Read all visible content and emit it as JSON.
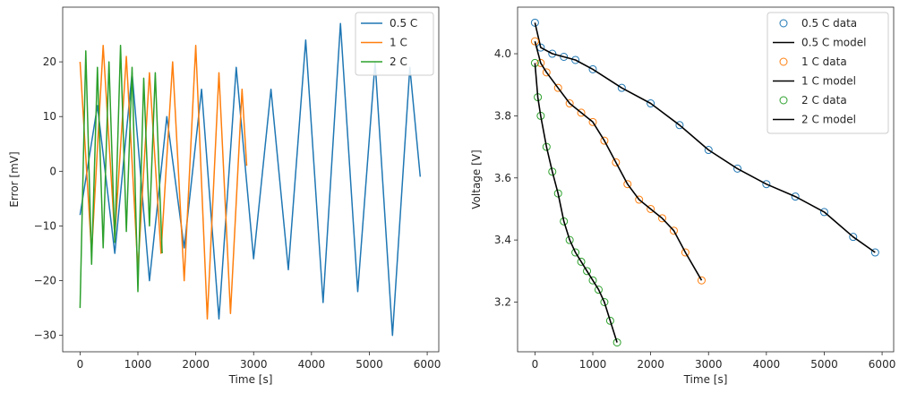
{
  "chart_data": [
    {
      "type": "line",
      "xlabel": "Time [s]",
      "ylabel": "Error [mV]",
      "xlim": [
        -300,
        6200
      ],
      "ylim": [
        -33,
        30
      ],
      "xticks": [
        0,
        1000,
        2000,
        3000,
        4000,
        5000,
        6000
      ],
      "yticks": [
        -30,
        -20,
        -10,
        0,
        10,
        20
      ],
      "ytick_labels": [
        "−30",
        "−20",
        "−10",
        "0",
        "10",
        "20"
      ],
      "legend": "top-right",
      "series": [
        {
          "name": "0.5 C",
          "color": "#1f77b4",
          "x": [
            0,
            300,
            600,
            900,
            1200,
            1500,
            1800,
            2100,
            2400,
            2700,
            3000,
            3300,
            3600,
            3900,
            4200,
            4500,
            4800,
            5100,
            5400,
            5700,
            5880
          ],
          "y": [
            -8,
            12,
            -15,
            18,
            -20,
            10,
            -14,
            15,
            -27,
            19,
            -16,
            15,
            -18,
            24,
            -24,
            27,
            -22,
            20,
            -30,
            19,
            -1
          ]
        },
        {
          "name": "1 C",
          "color": "#ff7f0e",
          "x": [
            0,
            200,
            400,
            600,
            800,
            1000,
            1200,
            1400,
            1600,
            1800,
            2000,
            2200,
            2400,
            2600,
            2800,
            2880
          ],
          "y": [
            20,
            -15,
            23,
            -12,
            21,
            -18,
            18,
            -15,
            20,
            -20,
            23,
            -27,
            18,
            -26,
            15,
            1
          ]
        },
        {
          "name": "2 C",
          "color": "#2ca02c",
          "x": [
            0,
            100,
            200,
            300,
            400,
            500,
            600,
            700,
            800,
            900,
            1000,
            1100,
            1200,
            1300,
            1420
          ],
          "y": [
            -25,
            22,
            -17,
            19,
            -14,
            20,
            -13,
            23,
            -11,
            19,
            -22,
            17,
            -10,
            18,
            -15
          ]
        }
      ]
    },
    {
      "type": "scatter",
      "xlabel": "Time [s]",
      "ylabel": "Voltage [V]",
      "xlim": [
        -300,
        6200
      ],
      "ylim": [
        3.04,
        4.15
      ],
      "xticks": [
        0,
        1000,
        2000,
        3000,
        4000,
        5000,
        6000
      ],
      "yticks": [
        3.2,
        3.4,
        3.6,
        3.8,
        4.0
      ],
      "ytick_labels": [
        "3.2",
        "3.4",
        "3.6",
        "3.8",
        "4.0"
      ],
      "legend": "top-right",
      "series": [
        {
          "name": "0.5 C data",
          "marker": "open-circle",
          "color": "#1f77b4",
          "x": [
            0,
            100,
            300,
            500,
            700,
            1000,
            1500,
            2000,
            2500,
            3000,
            3500,
            4000,
            4500,
            5000,
            5500,
            5880
          ],
          "y": [
            4.1,
            4.02,
            4.0,
            3.99,
            3.98,
            3.95,
            3.89,
            3.84,
            3.77,
            3.69,
            3.63,
            3.58,
            3.54,
            3.49,
            3.41,
            3.36
          ]
        },
        {
          "name": "0.5 C model",
          "color": "#000000",
          "x": [
            0,
            100,
            300,
            500,
            700,
            1000,
            1500,
            2000,
            2500,
            3000,
            3500,
            4000,
            4500,
            5000,
            5500,
            5880
          ],
          "y": [
            4.1,
            4.02,
            4.0,
            3.99,
            3.98,
            3.95,
            3.89,
            3.84,
            3.77,
            3.69,
            3.63,
            3.58,
            3.54,
            3.49,
            3.41,
            3.36
          ]
        },
        {
          "name": "1 C data",
          "marker": "open-circle",
          "color": "#ff7f0e",
          "x": [
            0,
            100,
            200,
            400,
            600,
            800,
            1000,
            1200,
            1400,
            1600,
            1800,
            2000,
            2200,
            2400,
            2600,
            2880
          ],
          "y": [
            4.04,
            3.97,
            3.94,
            3.89,
            3.84,
            3.81,
            3.78,
            3.72,
            3.65,
            3.58,
            3.53,
            3.5,
            3.47,
            3.43,
            3.36,
            3.27
          ]
        },
        {
          "name": "1 C model",
          "color": "#000000",
          "x": [
            0,
            100,
            200,
            400,
            600,
            800,
            1000,
            1200,
            1400,
            1600,
            1800,
            2000,
            2200,
            2400,
            2600,
            2880
          ],
          "y": [
            4.04,
            3.97,
            3.94,
            3.89,
            3.84,
            3.81,
            3.78,
            3.72,
            3.65,
            3.58,
            3.53,
            3.5,
            3.47,
            3.43,
            3.36,
            3.27
          ]
        },
        {
          "name": "2 C data",
          "marker": "open-circle",
          "color": "#2ca02c",
          "x": [
            0,
            50,
            100,
            200,
            300,
            400,
            500,
            600,
            700,
            800,
            900,
            1000,
            1100,
            1200,
            1300,
            1420
          ],
          "y": [
            3.97,
            3.86,
            3.8,
            3.7,
            3.62,
            3.55,
            3.46,
            3.4,
            3.36,
            3.33,
            3.3,
            3.27,
            3.24,
            3.2,
            3.14,
            3.07
          ]
        },
        {
          "name": "2 C model",
          "color": "#000000",
          "x": [
            0,
            50,
            100,
            200,
            300,
            400,
            500,
            600,
            700,
            800,
            900,
            1000,
            1100,
            1200,
            1300,
            1420
          ],
          "y": [
            3.97,
            3.86,
            3.8,
            3.7,
            3.62,
            3.55,
            3.46,
            3.4,
            3.36,
            3.33,
            3.3,
            3.27,
            3.24,
            3.2,
            3.14,
            3.07
          ]
        }
      ]
    }
  ]
}
